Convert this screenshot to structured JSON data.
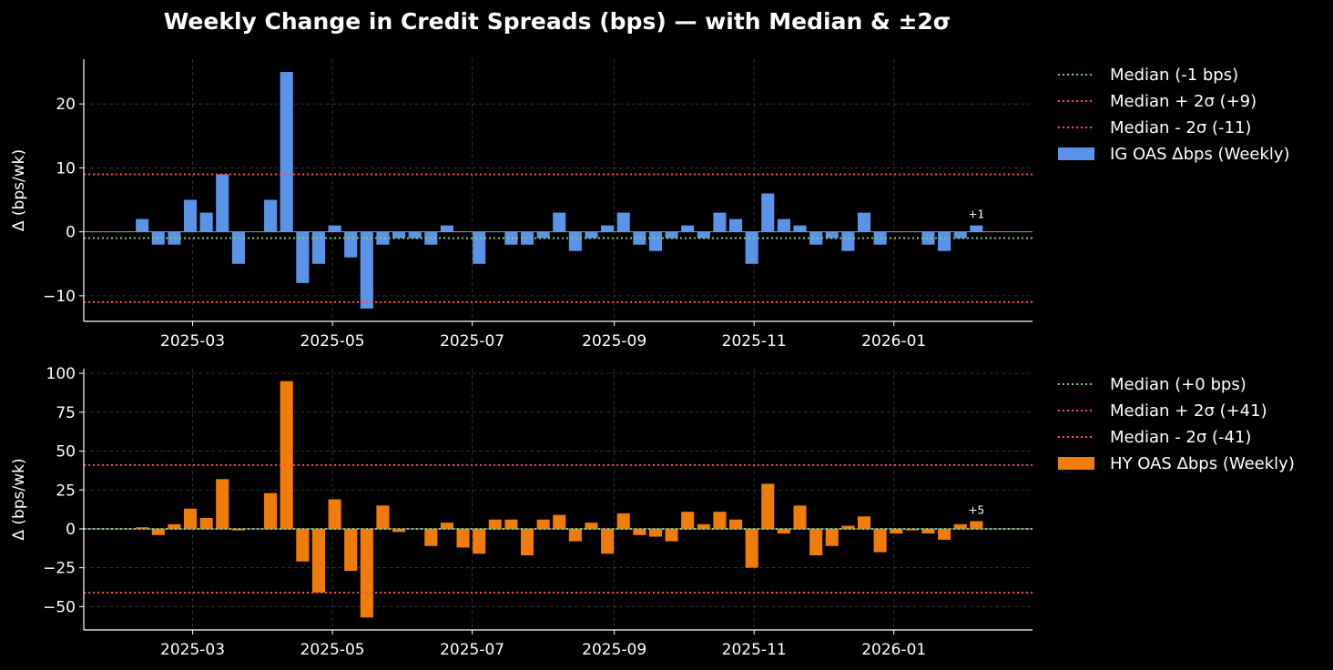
{
  "chart_data": {
    "title": "Weekly Change in Credit Spreads (bps) — with Median & ±2σ",
    "x_dates": [
      "2025-02-07",
      "2025-02-14",
      "2025-02-21",
      "2025-02-28",
      "2025-03-07",
      "2025-03-14",
      "2025-03-21",
      "2025-03-28",
      "2025-04-04",
      "2025-04-11",
      "2025-04-18",
      "2025-04-25",
      "2025-05-02",
      "2025-05-09",
      "2025-05-16",
      "2025-05-23",
      "2025-05-30",
      "2025-06-06",
      "2025-06-13",
      "2025-06-20",
      "2025-06-27",
      "2025-07-04",
      "2025-07-11",
      "2025-07-18",
      "2025-07-25",
      "2025-08-01",
      "2025-08-08",
      "2025-08-15",
      "2025-08-22",
      "2025-08-29",
      "2025-09-05",
      "2025-09-12",
      "2025-09-19",
      "2025-09-26",
      "2025-10-03",
      "2025-10-10",
      "2025-10-17",
      "2025-10-24",
      "2025-10-31",
      "2025-11-07",
      "2025-11-14",
      "2025-11-21",
      "2025-11-28",
      "2025-12-05",
      "2025-12-12",
      "2025-12-19",
      "2025-12-26",
      "2026-01-02",
      "2026-01-09",
      "2026-01-16",
      "2026-01-23",
      "2026-01-30",
      "2026-02-06"
    ],
    "x_ticks": [
      "2025-03",
      "2025-05",
      "2025-07",
      "2025-09",
      "2025-11",
      "2026-01"
    ],
    "panels": [
      {
        "type": "bar",
        "series_name": "IG OAS Δbps (Weekly)",
        "color": "#5b93e8",
        "values": [
          2,
          -2,
          -2,
          5,
          3,
          9,
          -5,
          0,
          5,
          25,
          -8,
          -5,
          1,
          -4,
          -12,
          -2,
          -1,
          -1,
          -2,
          1,
          0,
          -5,
          0,
          -2,
          -2,
          -1,
          3,
          -3,
          -1,
          1,
          3,
          -2,
          -3,
          -1,
          1,
          -1,
          3,
          2,
          -5,
          6,
          2,
          1,
          -2,
          -1,
          -3,
          3,
          -2,
          0,
          0,
          -2,
          -3,
          -1,
          1
        ],
        "ylabel": "Δ (bps/wk)",
        "ylim": [
          -14,
          27
        ],
        "y_ticks": [
          -10,
          0,
          10,
          20
        ],
        "median": -1,
        "upper": 9,
        "lower": -11,
        "median_label": "Median (-1 bps)",
        "upper_label": "Median + 2σ (+9)",
        "lower_label": "Median - 2σ (-11)",
        "last_label": "+1",
        "median_color": "#7ec87e",
        "band_color": "#ff4b4b"
      },
      {
        "type": "bar",
        "series_name": "HY OAS Δbps (Weekly)",
        "color": "#f07c0a",
        "values": [
          1,
          -4,
          3,
          13,
          7,
          32,
          -1,
          0,
          23,
          95,
          -21,
          -41,
          19,
          -27,
          -57,
          15,
          -2,
          0,
          -11,
          4,
          -12,
          -16,
          6,
          6,
          -17,
          6,
          9,
          -8,
          4,
          -16,
          10,
          -4,
          -5,
          -8,
          11,
          3,
          11,
          6,
          -25,
          29,
          -3,
          15,
          -17,
          -11,
          2,
          8,
          -15,
          -3,
          -1,
          -3,
          -7,
          3,
          5
        ],
        "ylabel": "Δ (bps/wk)",
        "ylim": [
          -65,
          103
        ],
        "y_ticks": [
          -50,
          -25,
          0,
          25,
          50,
          75,
          100
        ],
        "median": 0,
        "upper": 41,
        "lower": -41,
        "median_label": "Median (+0 bps)",
        "upper_label": "Median + 2σ (+41)",
        "lower_label": "Median - 2σ (-41)",
        "last_label": "+5",
        "median_color": "#7ec87e",
        "band_color": "#ff4b4b"
      }
    ]
  }
}
